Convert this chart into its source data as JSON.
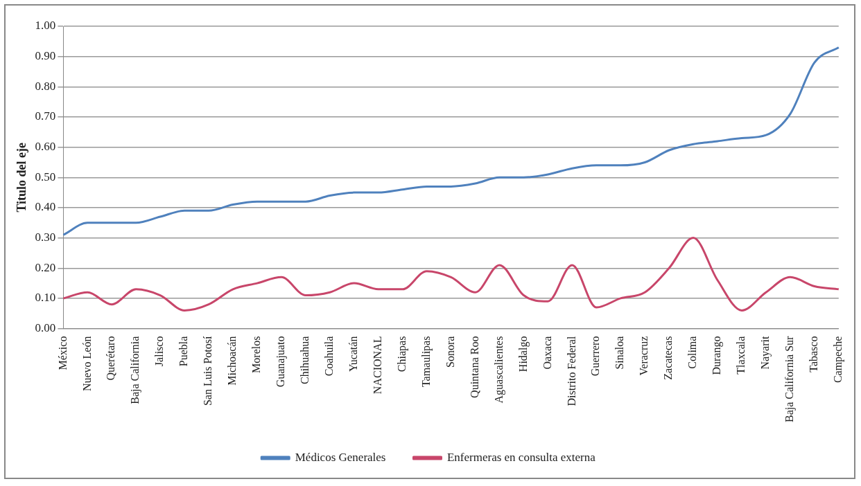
{
  "chart_data": {
    "type": "line",
    "ylabel": "Titulo del eje",
    "categories": [
      "México",
      "Nuevo León",
      "Querétaro",
      "Baja California",
      "Jalisco",
      "Puebla",
      "San Luis Potosí",
      "Michoacán",
      "Morelos",
      "Guanajuato",
      "Chihuahua",
      "Coahuila",
      "Yucatán",
      "NACIONAL",
      "Chiapas",
      "Tamaulipas",
      "Sonora",
      "Quintana Roo",
      "Aguascalientes",
      "Hidalgo",
      "Oaxaca",
      "Distrito Federal",
      "Guerrero",
      "Sinaloa",
      "Veracruz",
      "Zacatecas",
      "Colima",
      "Durango",
      "Tlaxcala",
      "Nayarit",
      "Baja California Sur",
      "Tabasco",
      "Campeche"
    ],
    "series": [
      {
        "name": "Médicos Generales",
        "color": "#4f81bd",
        "values": [
          0.31,
          0.35,
          0.35,
          0.35,
          0.37,
          0.39,
          0.39,
          0.41,
          0.42,
          0.42,
          0.42,
          0.44,
          0.45,
          0.45,
          0.46,
          0.47,
          0.47,
          0.48,
          0.5,
          0.5,
          0.51,
          0.53,
          0.54,
          0.54,
          0.55,
          0.59,
          0.61,
          0.62,
          0.63,
          0.64,
          0.71,
          0.88,
          0.93
        ]
      },
      {
        "name": "Enfermeras en consulta externa",
        "color": "#c8466a",
        "values": [
          0.1,
          0.12,
          0.08,
          0.13,
          0.11,
          0.06,
          0.08,
          0.13,
          0.15,
          0.17,
          0.11,
          0.12,
          0.15,
          0.13,
          0.13,
          0.19,
          0.17,
          0.12,
          0.21,
          0.11,
          0.09,
          0.21,
          0.07,
          0.1,
          0.12,
          0.2,
          0.3,
          0.16,
          0.06,
          0.12,
          0.17,
          0.14,
          0.13
        ]
      }
    ],
    "ylim": [
      0,
      1
    ],
    "yticks": [
      {
        "value": 0,
        "label": "0.00"
      },
      {
        "value": 0.1,
        "label": "0.10"
      },
      {
        "value": 0.2,
        "label": "0.20"
      },
      {
        "value": 0.3,
        "label": "0.30"
      },
      {
        "value": 0.4,
        "label": "0.40"
      },
      {
        "value": 0.5,
        "label": "0.50"
      },
      {
        "value": 0.6,
        "label": "0.60"
      },
      {
        "value": 0.7,
        "label": "0.70"
      },
      {
        "value": 0.8,
        "label": "0.80"
      },
      {
        "value": 0.9,
        "label": "0.90"
      },
      {
        "value": 1,
        "label": "1.00"
      }
    ],
    "grid": "y",
    "legend": "bottom",
    "marker": "none",
    "line_style": "solid"
  }
}
